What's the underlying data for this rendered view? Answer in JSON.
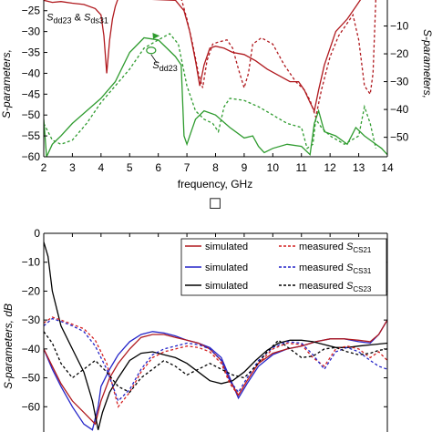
{
  "panel_marker": "☐",
  "chart_data": [
    {
      "type": "line",
      "xlabel": "frequency, GHz",
      "ylabel": "S-parameters,",
      "y2label": "S-parameters,",
      "xlim": [
        2,
        14
      ],
      "ylim": [
        -60,
        -22
      ],
      "y2lim": [
        -57,
        0
      ],
      "x_ticks": [
        2,
        3,
        4,
        5,
        6,
        7,
        8,
        9,
        10,
        11,
        12,
        13,
        14
      ],
      "y_ticks": [
        -25,
        -30,
        -35,
        -40,
        -45,
        -50,
        -55,
        -60
      ],
      "y2_ticks": [
        -10,
        -20,
        -30,
        -40,
        -50
      ],
      "annotations": [
        {
          "text": "S",
          "sub": "dd23",
          "suffix": " & S",
          "sub2": "ds31",
          "x": 2.1,
          "y": -27.3
        },
        {
          "text": "S",
          "sub": "dd23",
          "x": 5.8,
          "y": -38.8
        }
      ],
      "series": [
        {
          "color": "#b0191e",
          "style": "solid",
          "x": [
            2.0,
            2.3,
            2.6,
            3.0,
            3.4,
            3.8,
            4.0,
            4.1,
            4.2,
            4.3,
            4.4,
            4.5,
            4.6,
            6.6,
            6.9,
            7.1,
            7.3,
            7.45,
            7.6,
            7.8,
            8.0,
            8.3,
            8.6,
            9.0,
            9.4,
            9.8,
            10.2,
            10.6,
            10.9,
            11.1,
            11.3,
            11.45,
            11.6,
            11.8,
            12.2,
            12.6,
            12.9,
            13.1
          ],
          "y": [
            -22.5,
            -23.0,
            -22.8,
            -23.2,
            -23.5,
            -24.5,
            -26.0,
            -31.0,
            -40.0,
            -32.0,
            -27.0,
            -24.0,
            -22.0,
            -22.5,
            -25.0,
            -30.0,
            -37.0,
            -43.0,
            -38.0,
            -34.0,
            -33.5,
            -34.0,
            -35.0,
            -35.5,
            -37.0,
            -39.0,
            -40.5,
            -42.0,
            -42.0,
            -44.0,
            -47.0,
            -49.0,
            -44.0,
            -38.0,
            -30.0,
            -27.0,
            -24.0,
            -22.0
          ]
        },
        {
          "color": "#b0191e",
          "style": "dashed",
          "x": [
            6.8,
            7.0,
            7.2,
            7.4,
            7.55,
            7.7,
            7.9,
            8.1,
            8.4,
            8.6,
            8.8,
            9.0,
            9.15,
            9.3,
            9.6,
            10.0,
            10.4,
            10.8,
            11.1,
            11.3,
            11.5,
            11.7,
            12.0,
            12.3,
            12.6,
            12.8,
            12.9,
            13.0,
            13.2,
            13.4,
            13.5,
            13.6
          ],
          "y": [
            -22.0,
            -27.0,
            -33.0,
            -40.0,
            -43.5,
            -37.0,
            -33.0,
            -32.5,
            -32.0,
            -34.0,
            -39.0,
            -43.5,
            -40.0,
            -33.0,
            -31.5,
            -33.0,
            -38.0,
            -42.0,
            -44.0,
            -46.5,
            -50.5,
            -44.0,
            -36.0,
            -31.0,
            -28.0,
            -26.0,
            -29.0,
            -32.0,
            -43.0,
            -45.0,
            -40.0,
            -22.0
          ]
        },
        {
          "color": "#2e9b2e",
          "style": "solid",
          "x": [
            2.0,
            2.1,
            2.3,
            2.6,
            3.0,
            3.5,
            4.0,
            4.5,
            5.0,
            5.5,
            6.0,
            6.3,
            6.6,
            6.8,
            6.9,
            7.0,
            7.1,
            7.3,
            7.6,
            8.0,
            8.5,
            9.0,
            9.3,
            9.5,
            9.7,
            10.0,
            10.5,
            11.0,
            11.3,
            11.45,
            11.6,
            11.8,
            12.2,
            12.6,
            12.9,
            13.2,
            13.5,
            13.8,
            14.0
          ],
          "y": [
            -51.0,
            -60.0,
            -57.0,
            -55.0,
            -52.0,
            -49.0,
            -46.0,
            -42.0,
            -35.0,
            -31.5,
            -32.0,
            -34.0,
            -36.0,
            -38.0,
            -55.0,
            -57.0,
            -55.0,
            -51.0,
            -49.0,
            -50.0,
            -53.0,
            -55.5,
            -55.0,
            -57.5,
            -59.0,
            -58.0,
            -57.0,
            -57.5,
            -59.5,
            -52.0,
            -49.0,
            -54.0,
            -55.0,
            -57.0,
            -53.0,
            -55.0,
            -56.5,
            -58.0,
            -59.5
          ]
        },
        {
          "color": "#2e9b2e",
          "style": "dashed",
          "x": [
            2.0,
            2.3,
            2.6,
            3.0,
            3.5,
            4.0,
            4.5,
            5.0,
            5.5,
            6.0,
            6.4,
            6.7,
            7.0,
            7.3,
            7.6,
            7.9,
            8.1,
            8.3,
            8.5,
            9.0,
            9.5,
            10.0,
            10.5,
            11.0,
            11.2,
            11.4,
            11.5,
            11.7,
            12.0,
            12.5,
            13.0,
            13.2,
            13.4,
            13.6
          ],
          "y": [
            -52.0,
            -56.0,
            -57.0,
            -56.0,
            -52.0,
            -47.0,
            -43.0,
            -39.0,
            -34.0,
            -32.0,
            -30.5,
            -33.0,
            -43.0,
            -49.0,
            -51.0,
            -52.0,
            -54.0,
            -48.0,
            -46.0,
            -46.5,
            -48.0,
            -50.0,
            -52.0,
            -53.0,
            -58.0,
            -57.0,
            -51.0,
            -53.0,
            -55.0,
            -57.0,
            -55.0,
            -48.0,
            -52.0,
            -58.0
          ]
        }
      ]
    },
    {
      "type": "line",
      "ylabel": "S-parameters, dB",
      "ylim": [
        -70,
        0
      ],
      "y_ticks": [
        0,
        -10,
        -20,
        -30,
        -40,
        -50,
        -60
      ],
      "legend_position": "top-right",
      "legend": [
        {
          "label": "simulated",
          "color": "#b0191e",
          "style": "solid"
        },
        {
          "label": "measured S",
          "sub": "CS21",
          "color": "#d42020",
          "style": "dashed"
        },
        {
          "label": "simulated",
          "color": "#2424c8",
          "style": "solid"
        },
        {
          "label": "measured S",
          "sub": "CS31",
          "color": "#2424c8",
          "style": "dashed"
        },
        {
          "label": "simulated",
          "color": "#000000",
          "style": "solid"
        },
        {
          "label": "measured S",
          "sub": "CS23",
          "color": "#000000",
          "style": "dashed"
        }
      ],
      "series": [
        {
          "color": "#2424c8",
          "style": "solid",
          "x": [
            2.0,
            2.3,
            2.6,
            3.0,
            3.4,
            3.7,
            3.9,
            4.0,
            4.3,
            4.6,
            5.0,
            5.4,
            5.8,
            6.2,
            6.6,
            7.0,
            7.4,
            7.8,
            8.2,
            8.5,
            8.8,
            9.1,
            9.5,
            10.0,
            10.5,
            11.0,
            11.5,
            12.0,
            12.5,
            13.0,
            13.4,
            13.7,
            14.0
          ],
          "y": [
            -40.0,
            -47.0,
            -53.0,
            -60.0,
            -66.0,
            -68.0,
            -60.0,
            -53.0,
            -47.0,
            -42.0,
            -37.5,
            -35.0,
            -34.0,
            -34.5,
            -35.5,
            -37.0,
            -38.0,
            -39.5,
            -43.0,
            -50.0,
            -57.0,
            -52.0,
            -46.0,
            -42.0,
            -40.0,
            -39.0,
            -37.5,
            -36.5,
            -36.5,
            -37.5,
            -38.0,
            -35.0,
            -30.0
          ]
        },
        {
          "color": "#b0191e",
          "style": "solid",
          "x": [
            2.0,
            2.3,
            2.6,
            3.0,
            3.4,
            3.8,
            4.0,
            4.3,
            4.6,
            5.0,
            5.4,
            5.8,
            6.2,
            6.6,
            7.0,
            7.4,
            7.8,
            8.2,
            8.5,
            8.8,
            9.1,
            9.5,
            10.0,
            10.5,
            11.0,
            11.5,
            12.0,
            12.5,
            13.0,
            13.4,
            13.7,
            14.0
          ],
          "y": [
            -40.0,
            -46.0,
            -52.0,
            -58.0,
            -62.0,
            -66.0,
            -58.0,
            -50.0,
            -45.0,
            -40.0,
            -36.0,
            -35.0,
            -35.0,
            -36.0,
            -37.0,
            -38.0,
            -40.0,
            -44.0,
            -51.0,
            -56.0,
            -51.0,
            -45.0,
            -41.5,
            -40.0,
            -39.0,
            -37.5,
            -36.5,
            -36.5,
            -37.0,
            -37.5,
            -35.0,
            -30.0
          ]
        },
        {
          "color": "#000000",
          "style": "solid",
          "x": [
            2.0,
            2.15,
            2.3,
            2.6,
            3.0,
            3.4,
            3.7,
            3.9,
            4.05,
            4.3,
            4.6,
            5.0,
            5.4,
            5.8,
            6.2,
            6.6,
            7.0,
            7.4,
            7.8,
            8.2,
            8.6,
            9.0,
            9.4,
            9.8,
            10.2,
            10.6,
            11.0,
            11.4,
            11.8,
            12.2,
            12.6,
            13.0,
            13.5,
            14.0
          ],
          "y": [
            -3.0,
            -8.0,
            -20.0,
            -32.0,
            -40.0,
            -48.0,
            -58.0,
            -68.0,
            -62.0,
            -55.0,
            -50.0,
            -44.0,
            -41.5,
            -41.0,
            -42.0,
            -43.0,
            -45.0,
            -48.0,
            -51.0,
            -52.0,
            -51.0,
            -48.0,
            -44.0,
            -40.5,
            -38.0,
            -37.0,
            -37.0,
            -37.5,
            -38.5,
            -39.5,
            -39.5,
            -39.0,
            -38.5,
            -38.0
          ]
        },
        {
          "color": "#d42020",
          "style": "dashed",
          "x": [
            2.0,
            2.3,
            2.6,
            3.0,
            3.4,
            3.8,
            4.2,
            4.6,
            5.0,
            5.4,
            5.8,
            6.2,
            6.6,
            7.0,
            7.4,
            7.8,
            8.2,
            8.5,
            8.8,
            9.1,
            9.5,
            10.0,
            10.5,
            11.0,
            11.4,
            11.8,
            12.2,
            12.6,
            13.0,
            13.4,
            13.7,
            14.0
          ],
          "y": [
            -31.0,
            -29.0,
            -30.0,
            -31.5,
            -33.0,
            -37.0,
            -45.0,
            -60.0,
            -55.0,
            -48.0,
            -43.0,
            -41.0,
            -40.0,
            -39.0,
            -39.5,
            -41.0,
            -45.0,
            -52.0,
            -56.0,
            -51.0,
            -45.0,
            -40.0,
            -38.0,
            -38.5,
            -43.0,
            -46.0,
            -40.0,
            -39.0,
            -40.0,
            -43.0,
            -41.0,
            -44.0
          ]
        },
        {
          "color": "#2424c8",
          "style": "dashed",
          "x": [
            2.0,
            2.3,
            2.6,
            3.0,
            3.4,
            3.8,
            4.2,
            4.6,
            5.0,
            5.4,
            5.8,
            6.2,
            6.6,
            7.0,
            7.4,
            7.8,
            8.2,
            8.5,
            8.8,
            9.1,
            9.5,
            10.0,
            10.5,
            11.0,
            11.4,
            11.8,
            12.2,
            12.6,
            13.0,
            13.4,
            13.7,
            14.0
          ],
          "y": [
            -32.0,
            -29.5,
            -30.5,
            -32.0,
            -34.0,
            -39.0,
            -47.0,
            -58.0,
            -54.0,
            -47.0,
            -42.0,
            -40.0,
            -39.0,
            -38.0,
            -38.5,
            -40.0,
            -44.0,
            -51.0,
            -55.0,
            -50.0,
            -44.0,
            -39.5,
            -37.5,
            -38.0,
            -42.0,
            -47.0,
            -41.0,
            -39.5,
            -41.0,
            -44.0,
            -46.0,
            -47.0
          ]
        },
        {
          "color": "#000000",
          "style": "dashed",
          "x": [
            2.0,
            2.3,
            2.6,
            3.0,
            3.4,
            3.8,
            4.2,
            4.6,
            5.0,
            5.4,
            5.8,
            6.2,
            6.6,
            7.0,
            7.4,
            7.8,
            8.2,
            8.6,
            9.0,
            9.4,
            9.8,
            10.2,
            10.6,
            11.0,
            11.4,
            11.8,
            12.2,
            12.6,
            13.0,
            13.4,
            13.7,
            14.0
          ],
          "y": [
            -34.0,
            -38.0,
            -45.0,
            -50.0,
            -47.0,
            -44.0,
            -48.0,
            -53.0,
            -55.0,
            -50.0,
            -47.0,
            -44.0,
            -46.0,
            -49.0,
            -47.0,
            -45.0,
            -47.0,
            -49.0,
            -50.0,
            -46.0,
            -41.0,
            -37.0,
            -40.0,
            -43.0,
            -42.5,
            -40.0,
            -39.5,
            -41.0,
            -42.0,
            -41.5,
            -40.5,
            -40.0
          ]
        }
      ]
    }
  ]
}
